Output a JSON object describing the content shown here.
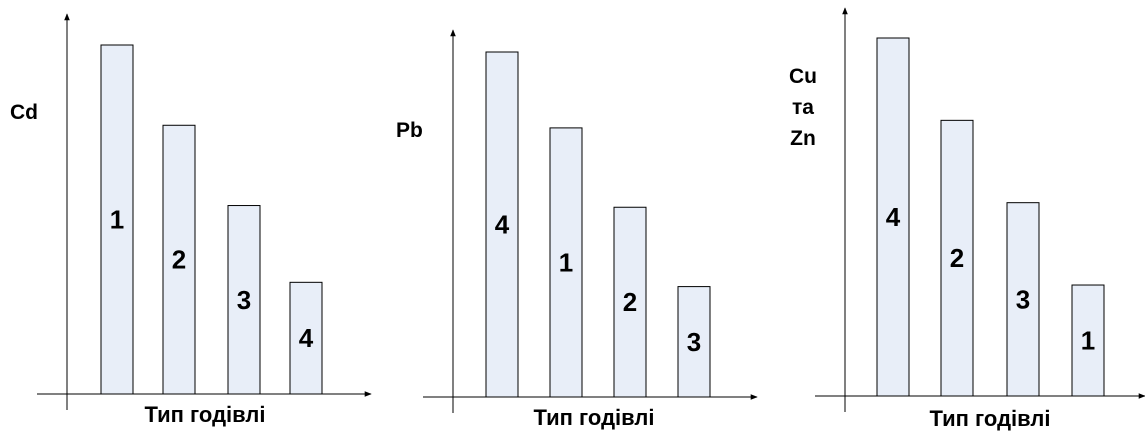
{
  "chart_data": [
    {
      "type": "bar",
      "ylabel": [
        "Cd"
      ],
      "xlabel": "Тип годівлі",
      "bar_labels": [
        "1",
        "2",
        "3",
        "4"
      ],
      "values": [
        100,
        77,
        54,
        32
      ],
      "ylim": [
        0,
        100
      ]
    },
    {
      "type": "bar",
      "ylabel": [
        "Pb"
      ],
      "xlabel": "Тип годівлі",
      "bar_labels": [
        "4",
        "1",
        "2",
        "3"
      ],
      "values": [
        100,
        78,
        55,
        32
      ],
      "ylim": [
        0,
        100
      ]
    },
    {
      "type": "bar",
      "ylabel": [
        "Cu",
        "та",
        "Zn"
      ],
      "xlabel": "Тип годівлі",
      "bar_labels": [
        "4",
        "2",
        "3",
        "1"
      ],
      "values": [
        100,
        77,
        54,
        31
      ],
      "ylim": [
        0,
        100
      ]
    }
  ],
  "colors": {
    "bar_fill": "#e8eef8",
    "bar_stroke": "#000000",
    "axis": "#000000"
  }
}
